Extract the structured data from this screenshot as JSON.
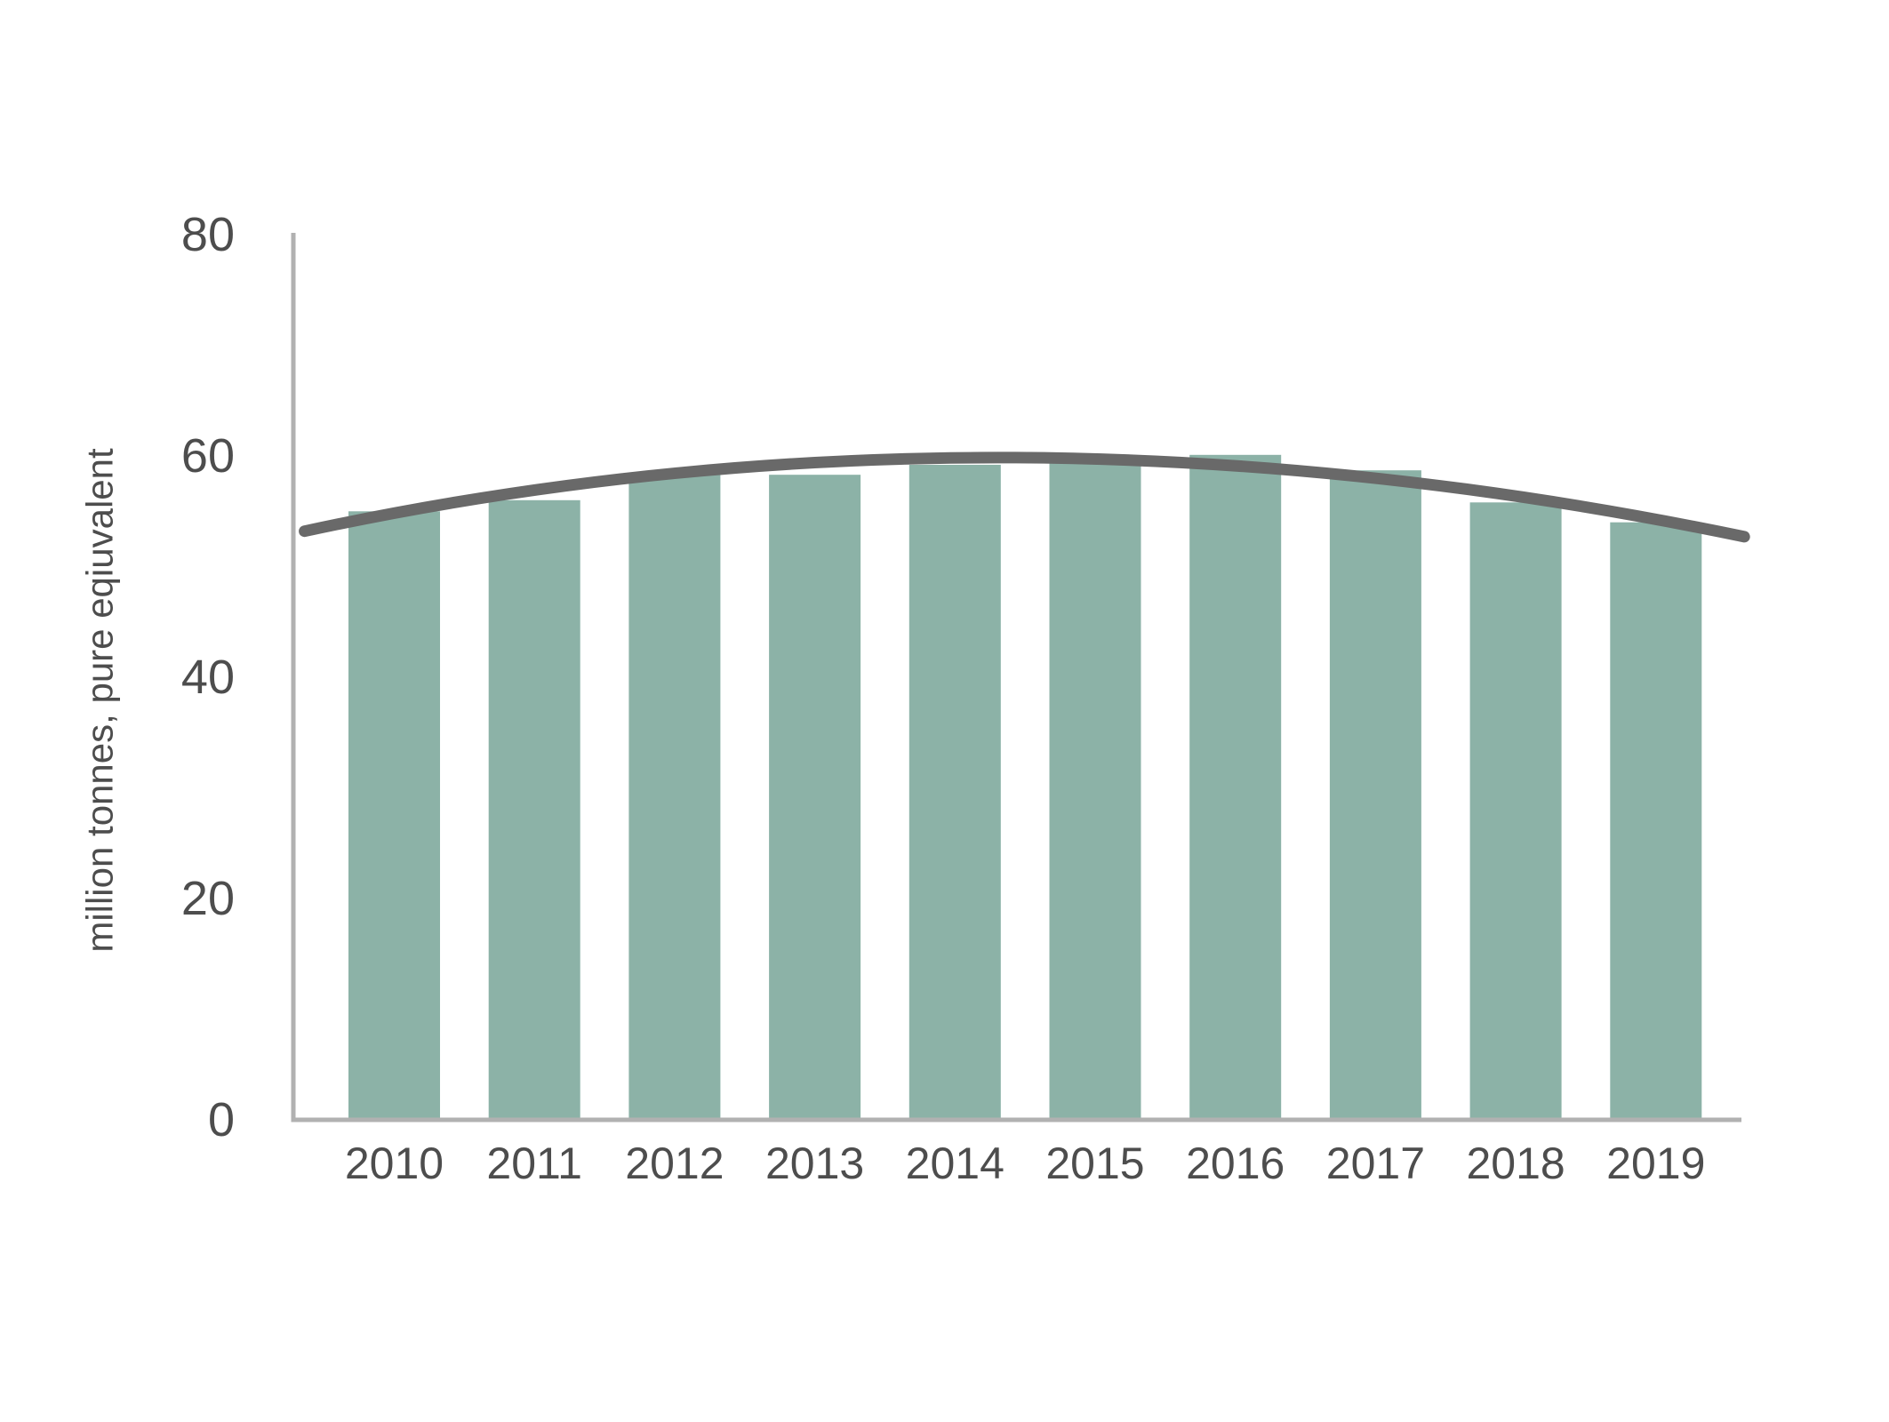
{
  "chart_data": {
    "type": "bar",
    "title": "",
    "xlabel": "",
    "ylabel": "million tonnes, pure eqiuvalent",
    "categories": [
      "2010",
      "2011",
      "2012",
      "2013",
      "2014",
      "2015",
      "2016",
      "2017",
      "2018",
      "2019"
    ],
    "values": [
      55.0,
      56.0,
      58.4,
      58.3,
      59.2,
      60.0,
      60.1,
      58.7,
      55.8,
      54.0
    ],
    "trend_line": {
      "shape": "parabola",
      "start": {
        "year": 2009.36,
        "value": 53.2
      },
      "peak": {
        "year": 2014.4,
        "value": 59.85
      },
      "end": {
        "year": 2019.63,
        "value": 52.7
      }
    },
    "ylim": [
      0,
      80
    ],
    "yticks": [
      0,
      20,
      40,
      60,
      80
    ],
    "grid": false,
    "legend": "none",
    "colors": {
      "bar": "#8CB2A7",
      "trend": "#696969",
      "axis": "#B1B1B1",
      "text": "#4D4D4D"
    }
  }
}
